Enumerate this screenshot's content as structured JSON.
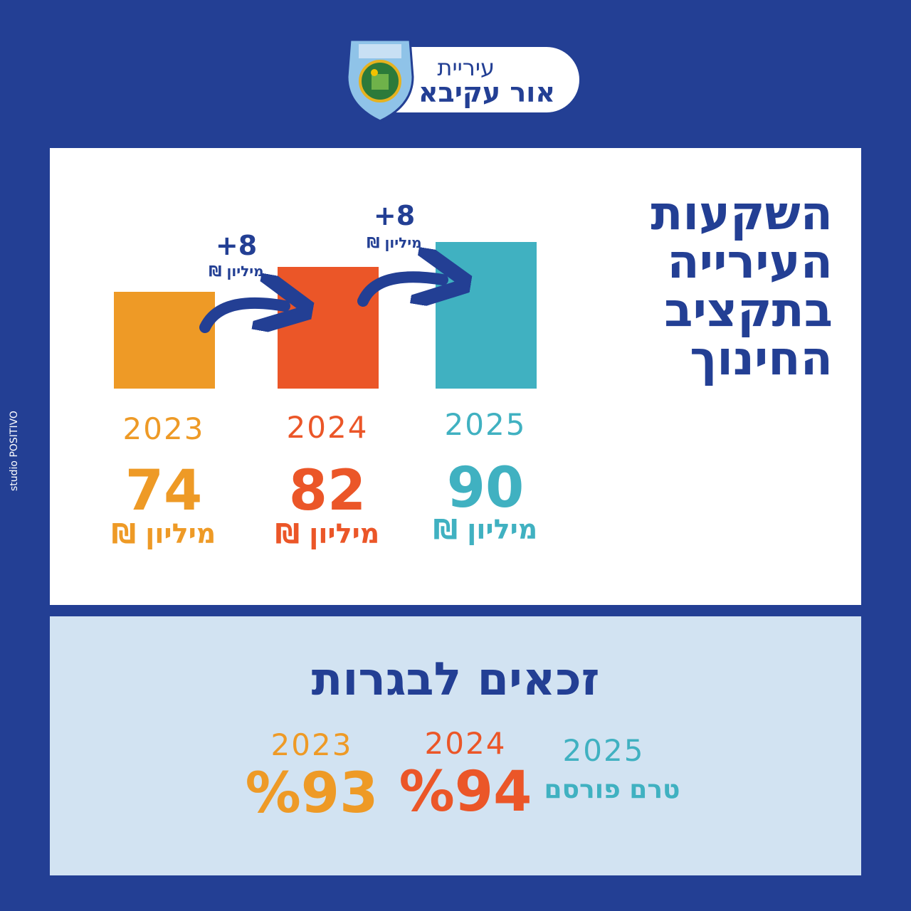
{
  "header": {
    "city_prefix": "עיריית",
    "city_name": "אור עקיבא",
    "emblem_text": "עיריית אור עקיבא"
  },
  "budget": {
    "title": "השקעות העירייה בתקציב החינוך",
    "unit": "מיליון ₪",
    "increment_label": "+8",
    "increment_unit": "מיליון ₪"
  },
  "chart_data": {
    "type": "bar",
    "title": "השקעות העירייה בתקציב החינוך",
    "categories": [
      "2023",
      "2024",
      "2025"
    ],
    "values": [
      74,
      82,
      90
    ],
    "unit": "מיליון ₪",
    "colors": [
      "#ee9a26",
      "#eb5628",
      "#40b1c1"
    ],
    "increments": [
      {
        "from": "2023",
        "to": "2024",
        "label": "+8"
      },
      {
        "from": "2024",
        "to": "2025",
        "label": "+8"
      }
    ]
  },
  "matriculation": {
    "title": "זכאים לבגרות",
    "items": [
      {
        "year": "2023",
        "value": "%93",
        "color": "#ee9a26"
      },
      {
        "year": "2024",
        "value": "%94",
        "color": "#eb5628"
      },
      {
        "year": "2025",
        "value": "טרם פורסם",
        "color": "#40b1c1"
      }
    ]
  },
  "credit": "studio POSITIVO"
}
